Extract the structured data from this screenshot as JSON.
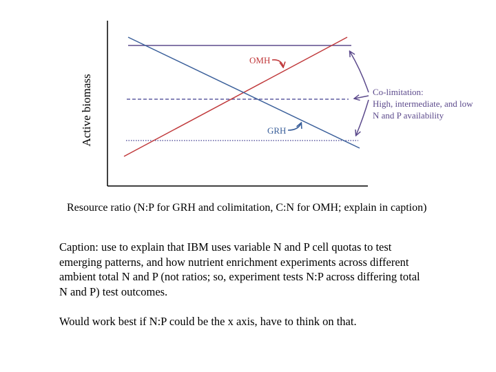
{
  "diagram": {
    "ylabel": "Active biomass",
    "xlabel": "Resource ratio (N:P for GRH and colimitation, C:N for OMH; explain in caption)",
    "labels": {
      "omh": "OMH",
      "grh": "GRH",
      "colimitation": [
        "Co-limitation:",
        "High, intermediate, and low",
        "N and P availability"
      ]
    },
    "lines": [
      {
        "name": "OMH",
        "style": "solid",
        "trend": "increasing"
      },
      {
        "name": "GRH",
        "style": "solid",
        "trend": "decreasing"
      },
      {
        "name": "high N and P availability",
        "style": "solid",
        "trend": "flat"
      },
      {
        "name": "intermediate N and P availability",
        "style": "dashed",
        "trend": "flat"
      },
      {
        "name": "low N and P availability",
        "style": "dotted",
        "trend": "flat"
      }
    ],
    "colors": {
      "omh": "#c0393b",
      "grh": "#3a5f9a",
      "colimitation": "#5c4a8c",
      "axis": "#000000"
    }
  },
  "caption": {
    "paragraph1": [
      "Caption: use to explain that IBM uses variable N and P cell quotas to test",
      "emerging patterns, and how nutrient enrichment experiments across different",
      "ambient total N and P (not ratios; so, experiment tests N:P across differing total",
      "N and P) test outcomes."
    ],
    "paragraph2": "Would work best if N:P could be the x axis, have to think on that."
  }
}
